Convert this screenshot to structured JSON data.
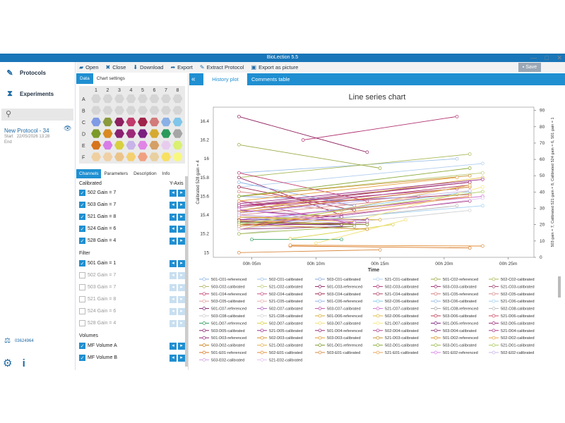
{
  "window": {
    "title": "BioLection 5.5",
    "controls": [
      "—",
      "□",
      "✕"
    ]
  },
  "nav": {
    "protocols": "Protocols",
    "experiments": "Experiments",
    "protocol_name": "New Protocol - 34",
    "protocol_start_label": "Start",
    "protocol_start_value": "22/05/2026 13:28",
    "protocol_end_label": "End",
    "license": "03624964"
  },
  "toolbar": {
    "open": "Open",
    "close": "Close",
    "download": "Download",
    "export": "Export",
    "extract": "Extract Protocol",
    "export_picture": "Export as picture",
    "save": "Save"
  },
  "left_panel": {
    "tabs": [
      "Data",
      "Chart settings"
    ],
    "plate_cols": [
      "1",
      "2",
      "3",
      "4",
      "5",
      "6",
      "7",
      "8"
    ],
    "plate_rows": [
      "A",
      "B",
      "C",
      "D",
      "E",
      "F"
    ],
    "plate_colors": [
      [
        "#d5d5d5",
        "#d5d5d5",
        "#d5d5d5",
        "#d5d5d5",
        "#d5d5d5",
        "#d5d5d5",
        "#d5d5d5",
        "#d5d5d5"
      ],
      [
        "#d5d5d5",
        "#d5d5d5",
        "#d5d5d5",
        "#d5d5d5",
        "#d5d5d5",
        "#d5d5d5",
        "#d5d5d5",
        "#d5d5d5"
      ],
      [
        "#7f9be6",
        "#8a9a3c",
        "#8e1f5e",
        "#c03a6a",
        "#a0234a",
        "#d37a7a",
        "#8ab0e6",
        "#7fc6ea"
      ],
      [
        "#7a9a2a",
        "#d98a20",
        "#8a2070",
        "#9c2a78",
        "#7c2080",
        "#d6aa30",
        "#2a9a5a",
        "#a5a5a5"
      ],
      [
        "#d7741e",
        "#d87de8",
        "#d8d040",
        "#c8b4e8",
        "#e085e6",
        "#d4a066",
        "#e8ccef",
        "#d9f070"
      ],
      [
        "#efd0a0",
        "#f0d0a5",
        "#ecc48a",
        "#f4d070",
        "#f0a080",
        "#e8d0a0",
        "#f8e060",
        "#f8f880"
      ]
    ],
    "tabs2": [
      "Channels",
      "Parameters",
      "Description",
      "Info"
    ],
    "calibrated_title": "Calibrated",
    "yaxis_title": "Y-Axis",
    "calibrated": [
      {
        "label": "502 Gain = 7",
        "checked": true
      },
      {
        "label": "503 Gain = 7",
        "checked": true
      },
      {
        "label": "521 Gain = 8",
        "checked": true
      },
      {
        "label": "524 Gain = 6",
        "checked": true
      },
      {
        "label": "528 Gain = 4",
        "checked": true
      }
    ],
    "filter_title": "Filter",
    "filter": [
      {
        "label": "501 Gain = 1",
        "checked": true
      },
      {
        "label": "502 Gain = 7",
        "checked": false
      },
      {
        "label": "503 Gain = 7",
        "checked": false
      },
      {
        "label": "521 Gain = 8",
        "checked": false
      },
      {
        "label": "524 Gain = 6",
        "checked": false
      },
      {
        "label": "528 Gain = 4",
        "checked": false
      }
    ],
    "volumes_title": "Volumes",
    "volumes": [
      {
        "label": "MF Volume A",
        "checked": true
      },
      {
        "label": "MF Volume B",
        "checked": true
      }
    ]
  },
  "tabs_right": {
    "history": "History plot",
    "comments": "Comments table"
  },
  "chart_data": {
    "type": "line",
    "title": "Line series chart",
    "xlabel": "Time",
    "ylabel_left": "Calibrated 528 gain = 4",
    "ylabel_right": "503 gain = 7, Calibrated 521 gain = 8, Calibrated 524 gain = 6, 501 gain = 1",
    "x_ticks": [
      "00h 05m",
      "00h 10m",
      "00h 15m",
      "00h 20m",
      "00h 25m"
    ],
    "xlim_min": [
      2,
      27
    ],
    "y_left_ticks": [
      "15",
      "15.2",
      "15.4",
      "15.6",
      "15.8",
      "16",
      "16.2",
      "16.4"
    ],
    "ylim_left": [
      14.95,
      16.55
    ],
    "y_right_ticks": [
      "0",
      "10",
      "20",
      "30",
      "40",
      "50",
      "60",
      "70",
      "80",
      "90"
    ],
    "ylim_right": [
      0,
      92
    ],
    "series": [
      {
        "name": "501-C01-referenced",
        "color": "#8ab6e6",
        "x": [
          4,
          18
        ],
        "y": [
          15.5,
          15.6
        ]
      },
      {
        "name": "502-C01-calibrated",
        "color": "#9cc0e8",
        "x": [
          4,
          21
        ],
        "y": [
          15.85,
          16.0
        ]
      },
      {
        "name": "503-C01-calibrated",
        "color": "#8aa8dc",
        "x": [
          4,
          14
        ],
        "y": [
          15.6,
          15.55
        ]
      },
      {
        "name": "521-C01-calibrated",
        "color": "#b0cdee",
        "x": [
          4,
          23
        ],
        "y": [
          15.7,
          15.95
        ]
      },
      {
        "name": "501-C02-referenced",
        "color": "#9aaa44",
        "x": [
          4,
          15
        ],
        "y": [
          16.15,
          15.9
        ]
      },
      {
        "name": "502-C02-calibrated",
        "color": "#a5b855",
        "x": [
          4,
          22
        ],
        "y": [
          15.8,
          16.05
        ]
      },
      {
        "name": "503-C02-calibrated",
        "color": "#b0b060",
        "x": [
          4,
          12
        ],
        "y": [
          15.55,
          15.45
        ]
      },
      {
        "name": "521-C02-calibrated",
        "color": "#bccc78",
        "x": [
          4,
          23
        ],
        "y": [
          15.6,
          15.85
        ]
      },
      {
        "name": "501-C03-referenced",
        "color": "#8e1f5e",
        "x": [
          4,
          14
        ],
        "y": [
          16.45,
          16.07
        ]
      },
      {
        "name": "502-C03-calibrated",
        "color": "#b03070",
        "x": [
          9,
          21
        ],
        "y": [
          16.2,
          16.45
        ]
      },
      {
        "name": "503-C03-calibrated",
        "color": "#9c2a6a",
        "x": [
          4,
          12
        ],
        "y": [
          15.8,
          15.4
        ]
      },
      {
        "name": "521-C03-calibrated",
        "color": "#a04070",
        "x": [
          4,
          22
        ],
        "y": [
          15.5,
          15.75
        ]
      },
      {
        "name": "501-C04-referenced",
        "color": "#c03a6a",
        "x": [
          4,
          14
        ],
        "y": [
          15.85,
          15.55
        ]
      },
      {
        "name": "502-C04-calibrated",
        "color": "#c85080",
        "x": [
          4,
          22
        ],
        "y": [
          15.35,
          15.6
        ]
      },
      {
        "name": "503-C04-calibrated",
        "color": "#a0234a",
        "x": [
          4,
          13
        ],
        "y": [
          15.7,
          15.45
        ]
      },
      {
        "name": "521-C04-calibrated",
        "color": "#b04060",
        "x": [
          4,
          22
        ],
        "y": [
          15.45,
          15.72
        ]
      },
      {
        "name": "501-C05-referenced",
        "color": "#d37a7a",
        "x": [
          4,
          13
        ],
        "y": [
          15.65,
          15.5
        ]
      },
      {
        "name": "502-C05-calibrated",
        "color": "#d88a8a",
        "x": [
          4,
          21
        ],
        "y": [
          15.4,
          15.62
        ]
      },
      {
        "name": "503-C05-calibrated",
        "color": "#e09a9a",
        "x": [
          4,
          12
        ],
        "y": [
          15.55,
          15.45
        ]
      },
      {
        "name": "521-C05-calibrated",
        "color": "#e8aaaa",
        "x": [
          4,
          22
        ],
        "y": [
          15.3,
          15.55
        ]
      },
      {
        "name": "501-C06-referenced",
        "color": "#8ab0e6",
        "x": [
          4,
          13
        ],
        "y": [
          15.75,
          15.5
        ]
      },
      {
        "name": "502-C06-calibrated",
        "color": "#7fc6ea",
        "x": [
          4,
          22
        ],
        "y": [
          15.32,
          15.65
        ]
      },
      {
        "name": "503-C06-calibrated",
        "color": "#90b8e8",
        "x": [
          4,
          12
        ],
        "y": [
          15.38,
          15.28
        ]
      },
      {
        "name": "521-C06-calibrated",
        "color": "#a0d0f0",
        "x": [
          4,
          23
        ],
        "y": [
          15.28,
          15.5
        ]
      },
      {
        "name": "501-C07-referenced",
        "color": "#7f1f6e",
        "x": [
          4,
          12
        ],
        "y": [
          15.45,
          15.38
        ]
      },
      {
        "name": "502-C07-calibrated",
        "color": "#b060c0",
        "x": [
          4,
          22
        ],
        "y": [
          15.42,
          15.7
        ]
      },
      {
        "name": "503-C07-calibrated",
        "color": "#c050a8",
        "x": [
          4,
          13
        ],
        "y": [
          15.55,
          15.3
        ]
      },
      {
        "name": "521-C07-calibrated",
        "color": "#d070d0",
        "x": [
          4,
          23
        ],
        "y": [
          15.35,
          15.6
        ]
      },
      {
        "name": "501-C08-referenced",
        "color": "#a5a5a5",
        "x": [
          4,
          12
        ],
        "y": [
          15.3,
          15.3
        ]
      },
      {
        "name": "502-C08-calibrated",
        "color": "#b8b8b8",
        "x": [
          4,
          21
        ],
        "y": [
          15.25,
          15.5
        ]
      },
      {
        "name": "503-C08-calibrated",
        "color": "#c8c8c8",
        "x": [
          4,
          13
        ],
        "y": [
          15.4,
          15.3
        ]
      },
      {
        "name": "521-C08-calibrated",
        "color": "#d0d0d0",
        "x": [
          4,
          22
        ],
        "y": [
          15.2,
          15.45
        ]
      },
      {
        "name": "501-D06-referenced",
        "color": "#d6aa30",
        "x": [
          4,
          15
        ],
        "y": [
          15.38,
          15.35
        ]
      },
      {
        "name": "502-D06-calibrated",
        "color": "#e0b840",
        "x": [
          4,
          23
        ],
        "y": [
          15.45,
          15.8
        ]
      },
      {
        "name": "503-D06-calibrated",
        "color": "#c03a50",
        "x": [
          4,
          14
        ],
        "y": [
          15.3,
          15.3
        ]
      },
      {
        "name": "521-D06-calibrated",
        "color": "#d04860",
        "x": [
          4,
          22
        ],
        "y": [
          15.5,
          15.62
        ]
      },
      {
        "name": "501-D07-referenced",
        "color": "#2a9a5a",
        "x": [
          5,
          12
        ],
        "y": [
          15.14,
          15.14
        ]
      },
      {
        "name": "502-D07-calibrated",
        "color": "#d8d040",
        "x": [
          8,
          16
        ],
        "y": [
          15.15,
          15.3
        ]
      },
      {
        "name": "503-D07-calibrated",
        "color": "#f0e070",
        "x": [
          10,
          17
        ],
        "y": [
          15.1,
          15.35
        ]
      },
      {
        "name": "521-D07-calibrated",
        "color": "#f4e880",
        "x": [
          12,
          23
        ],
        "y": [
          15.3,
          15.7
        ]
      },
      {
        "name": "501-D05-referenced",
        "color": "#7c2080",
        "x": [
          4,
          14
        ],
        "y": [
          15.35,
          15.35
        ]
      },
      {
        "name": "502-D05-calibrated",
        "color": "#9c2a78",
        "x": [
          4,
          22
        ],
        "y": [
          15.48,
          15.75
        ]
      },
      {
        "name": "503-D05-calibrated",
        "color": "#8a2070",
        "x": [
          4,
          12
        ],
        "y": [
          15.3,
          15.3
        ]
      },
      {
        "name": "521-D05-calibrated",
        "color": "#a03088",
        "x": [
          4,
          23
        ],
        "y": [
          15.52,
          15.78
        ]
      },
      {
        "name": "501-D04-referenced",
        "color": "#9c2a78",
        "x": [
          4,
          14
        ],
        "y": [
          15.3,
          15.32
        ]
      },
      {
        "name": "502-D04-calibrated",
        "color": "#b04090",
        "x": [
          4,
          21
        ],
        "y": [
          15.5,
          15.68
        ]
      },
      {
        "name": "503-D04-calibrated",
        "color": "#8a2a70",
        "x": [
          4,
          13
        ],
        "y": [
          15.25,
          15.28
        ]
      },
      {
        "name": "521-D04-calibrated",
        "color": "#a83a88",
        "x": [
          4,
          22
        ],
        "y": [
          15.28,
          15.55
        ]
      },
      {
        "name": "501-D03-referenced",
        "color": "#8a2070",
        "x": [
          4,
          13
        ],
        "y": [
          15.33,
          15.3
        ]
      },
      {
        "name": "502-D03-calibrated",
        "color": "#d98a20",
        "x": [
          4,
          22
        ],
        "y": [
          15.43,
          15.7
        ]
      },
      {
        "name": "503-D03-calibrated",
        "color": "#e09a30",
        "x": [
          4,
          13
        ],
        "y": [
          15.38,
          15.33
        ]
      },
      {
        "name": "521-D03-calibrated",
        "color": "#c8902a",
        "x": [
          4,
          22
        ],
        "y": [
          15.6,
          15.82
        ]
      },
      {
        "name": "501-D02-referenced",
        "color": "#d98a20",
        "x": [
          4,
          13
        ],
        "y": [
          15.34,
          15.3
        ]
      },
      {
        "name": "502-D02-calibrated",
        "color": "#e8a040",
        "x": [
          4,
          21
        ],
        "y": [
          15.55,
          15.8
        ]
      },
      {
        "name": "503-D02-calibrated",
        "color": "#c87a10",
        "x": [
          4,
          14
        ],
        "y": [
          15.3,
          15.25
        ]
      },
      {
        "name": "521-D02-calibrated",
        "color": "#e0b050",
        "x": [
          4,
          22
        ],
        "y": [
          15.25,
          15.72
        ]
      },
      {
        "name": "501-D01-referenced",
        "color": "#7a9a2a",
        "x": [
          4,
          14
        ],
        "y": [
          15.32,
          15.3
        ]
      },
      {
        "name": "502-D01-calibrated",
        "color": "#8aaa3a",
        "x": [
          4,
          22
        ],
        "y": [
          15.6,
          15.9
        ]
      },
      {
        "name": "503-D01-calibrated",
        "color": "#9ab84a",
        "x": [
          4,
          13
        ],
        "y": [
          15.2,
          15.28
        ]
      },
      {
        "name": "521-D01-calibrated",
        "color": "#aac85a",
        "x": [
          4,
          23
        ],
        "y": [
          15.3,
          15.65
        ]
      },
      {
        "name": "501-E01-referenced",
        "color": "#d7741e",
        "x": [
          8,
          22
        ],
        "y": [
          15.07,
          15.05
        ]
      },
      {
        "name": "502-E01-calibrated",
        "color": "#e08a30",
        "x": [
          8,
          23
        ],
        "y": [
          15.08,
          15.07
        ]
      },
      {
        "name": "503-E01-calibrated",
        "color": "#d88a40",
        "x": [
          4,
          15
        ],
        "y": [
          15.0,
          15.03
        ]
      },
      {
        "name": "521-E01-calibrated",
        "color": "#e8a050",
        "x": [
          4,
          22
        ],
        "y": [
          15.28,
          15.6
        ]
      },
      {
        "name": "501-E02-referenced",
        "color": "#d87de8",
        "x": [
          4,
          13
        ],
        "y": [
          15.46,
          15.32
        ]
      },
      {
        "name": "502-E02-calibrated",
        "color": "#c8b4e8",
        "x": [
          4,
          22
        ],
        "y": [
          15.42,
          15.66
        ]
      },
      {
        "name": "503-E02-calibrated",
        "color": "#d0a0e0",
        "x": [
          4,
          14
        ],
        "y": [
          15.4,
          15.34
        ]
      },
      {
        "name": "521-E02-calibrated",
        "color": "#e0c0f0",
        "x": [
          4,
          23
        ],
        "y": [
          15.25,
          15.58
        ]
      }
    ],
    "legend_placement": "bottom",
    "grid": false
  }
}
